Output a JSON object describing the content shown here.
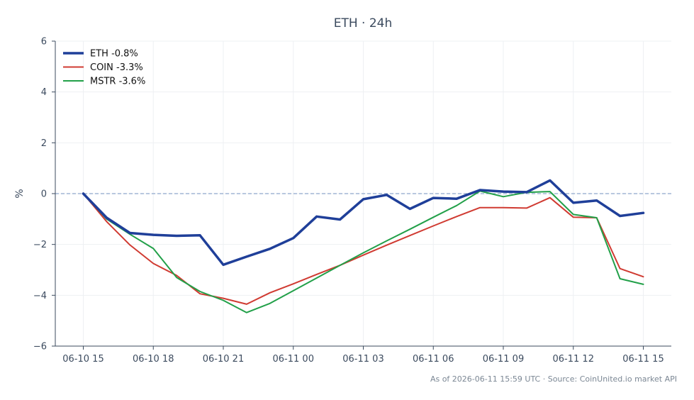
{
  "chart_data": {
    "type": "line",
    "title": "ETH · 24h",
    "ylabel": "%",
    "xlabel": "",
    "ylim": [
      -6,
      6
    ],
    "yticks": [
      6,
      4,
      2,
      0,
      -2,
      -4,
      -6
    ],
    "ytick_labels": [
      "6",
      "4",
      "2",
      "0",
      "−2",
      "−4",
      "−6"
    ],
    "xticks": [
      0,
      3,
      6,
      9,
      12,
      15,
      18,
      21,
      24
    ],
    "xtick_labels": [
      "06-10 15",
      "06-10 18",
      "06-10 21",
      "06-11 00",
      "06-11 03",
      "06-11 06",
      "06-11 09",
      "06-11 12",
      "06-11 15"
    ],
    "xlim": [
      -1.2,
      25.2
    ],
    "x": [
      0,
      1,
      2,
      3,
      4,
      5,
      6,
      7,
      8,
      9,
      10,
      11,
      12,
      13,
      14,
      15,
      16,
      17,
      18,
      19,
      20,
      21,
      22,
      23,
      24
    ],
    "zero_line": true,
    "grid": true,
    "legend_position": "top-left",
    "series": [
      {
        "name": "ETH -0.8%",
        "color": "#1f3f99",
        "width": 3.5,
        "values": [
          0.0,
          -0.95,
          -1.55,
          -1.62,
          -1.66,
          -1.64,
          -2.8,
          -2.48,
          -2.17,
          -1.75,
          -0.9,
          -1.02,
          -0.22,
          -0.05,
          -0.6,
          -0.17,
          -0.2,
          0.14,
          0.08,
          0.06,
          0.52,
          -0.36,
          -0.27,
          -0.88,
          -0.76
        ]
      },
      {
        "name": "COIN -3.3%",
        "color": "#d03b32",
        "width": 2,
        "values": [
          0.0,
          -1.1,
          -2.02,
          -2.75,
          -3.22,
          -3.94,
          -4.12,
          -4.35,
          -3.9,
          -3.55,
          -3.18,
          -2.82,
          -2.42,
          -2.03,
          -1.65,
          -1.27,
          -0.9,
          -0.55,
          -0.55,
          -0.57,
          -0.16,
          -0.93,
          -0.95,
          -2.95,
          -3.27
        ]
      },
      {
        "name": "MSTR -3.6%",
        "color": "#22a049",
        "width": 2,
        "values": [
          0.0,
          -1.0,
          -1.6,
          -2.16,
          -3.3,
          -3.85,
          -4.2,
          -4.68,
          -4.32,
          -3.82,
          -3.32,
          -2.82,
          -2.33,
          -1.86,
          -1.4,
          -0.93,
          -0.47,
          0.1,
          -0.12,
          0.05,
          0.08,
          -0.82,
          -0.95,
          -3.35,
          -3.57
        ]
      }
    ],
    "footer": "As of 2026-06-11 15:59 UTC · Source: CoinUnited.io market API"
  }
}
